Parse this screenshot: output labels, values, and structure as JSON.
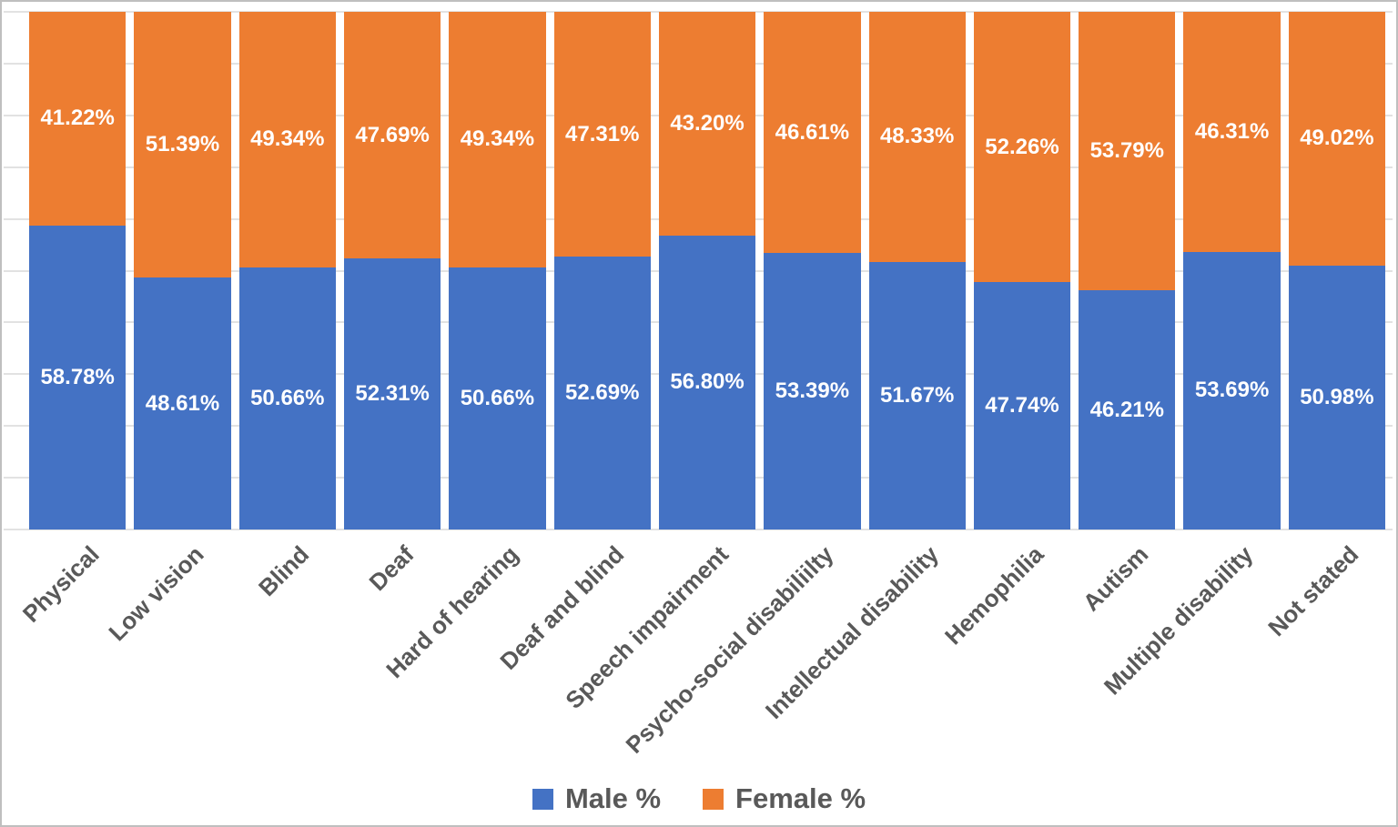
{
  "chart_data": {
    "type": "bar",
    "stacked": true,
    "orientation": "vertical",
    "title": "",
    "xlabel": "",
    "ylabel": "",
    "ylim": [
      0,
      100
    ],
    "gridline_interval": 10,
    "grid": true,
    "legend_position": "bottom",
    "data_label_suffix": "%",
    "categories": [
      "Physical",
      "Low vision",
      "Blind",
      "Deaf",
      "Hard of hearing",
      "Deaf and blind",
      "Speech impairment",
      "Psycho-social disabiliilty",
      "Intellectual disability",
      "Hemophilia",
      "Autism",
      "Multiple disability",
      "Not stated"
    ],
    "series": [
      {
        "name": "Male %",
        "color": "#4472C4",
        "values": [
          58.78,
          48.61,
          50.66,
          52.31,
          50.66,
          52.69,
          56.8,
          53.39,
          51.67,
          47.74,
          46.21,
          53.69,
          50.98
        ]
      },
      {
        "name": "Female %",
        "color": "#ED7D31",
        "values": [
          41.22,
          51.39,
          49.34,
          47.69,
          49.34,
          47.31,
          43.2,
          46.61,
          48.33,
          52.26,
          53.79,
          46.31,
          49.02
        ]
      }
    ]
  },
  "colors": {
    "male_bar": "#4472C4",
    "female_bar": "#ED7D31",
    "data_label_text": "#FFFFFF",
    "category_label_text": "#595959",
    "legend_text": "#595959",
    "gridline": "#E2E2E2",
    "chart_border": "#BFBFBF",
    "background": "#FFFFFF"
  }
}
